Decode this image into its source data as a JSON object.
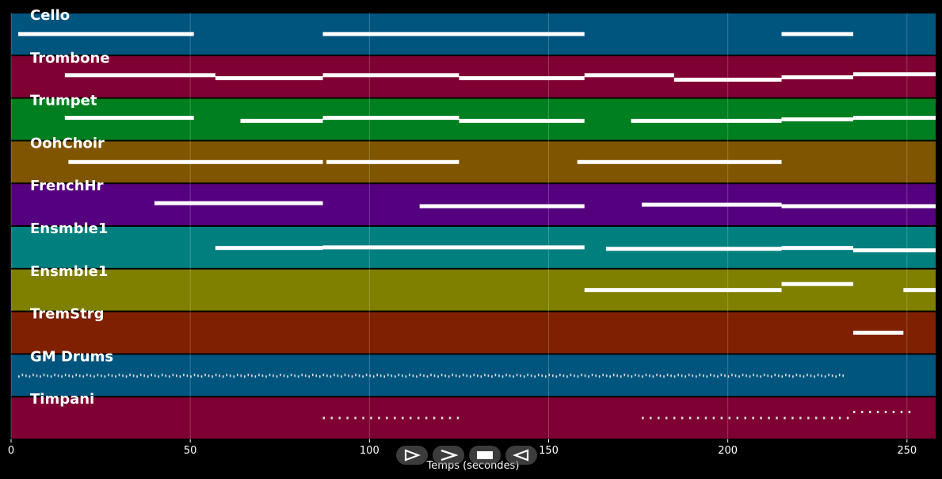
{
  "chart_data": {
    "type": "piano-roll",
    "xlabel": "Temps (secondes)",
    "xlim": [
      0,
      258
    ],
    "xticks": [
      0,
      50,
      100,
      150,
      200,
      250
    ],
    "grid": true,
    "tracks": [
      {
        "name": "Cello",
        "color": "#00557f",
        "notes": [
          [
            2,
            51,
            0.5
          ],
          [
            87,
            160,
            0.5
          ],
          [
            215,
            235,
            0.5
          ]
        ]
      },
      {
        "name": "Trombone",
        "color": "#7f0033",
        "notes": [
          [
            15,
            57,
            0.55
          ],
          [
            57,
            87,
            0.45
          ],
          [
            87,
            125,
            0.55
          ],
          [
            125,
            160,
            0.45
          ],
          [
            160,
            185,
            0.55
          ],
          [
            185,
            215,
            0.4
          ],
          [
            215,
            235,
            0.48
          ],
          [
            235,
            258,
            0.58
          ]
        ]
      },
      {
        "name": "Trumpet",
        "color": "#007f20",
        "notes": [
          [
            15,
            51,
            0.55
          ],
          [
            64,
            87,
            0.45
          ],
          [
            87,
            125,
            0.55
          ],
          [
            125,
            160,
            0.45
          ],
          [
            173,
            215,
            0.45
          ],
          [
            215,
            235,
            0.5
          ],
          [
            235,
            258,
            0.55
          ]
        ]
      },
      {
        "name": "OohChoir",
        "color": "#7f5500",
        "notes": [
          [
            16,
            87,
            0.5
          ],
          [
            88,
            125,
            0.5
          ],
          [
            158,
            215,
            0.5
          ]
        ]
      },
      {
        "name": "FrenchHr",
        "color": "#55007f",
        "notes": [
          [
            40,
            87,
            0.55
          ],
          [
            114,
            160,
            0.45
          ],
          [
            176,
            215,
            0.5
          ],
          [
            215,
            258,
            0.45
          ]
        ]
      },
      {
        "name": "Ensmble1",
        "color": "#007f7f",
        "notes": [
          [
            57,
            87,
            0.48
          ],
          [
            87,
            160,
            0.5
          ],
          [
            166,
            215,
            0.45
          ],
          [
            215,
            235,
            0.48
          ],
          [
            235,
            258,
            0.4
          ]
        ]
      },
      {
        "name": "Ensmble1",
        "color": "#7f7f00",
        "notes": [
          [
            160,
            215,
            0.5
          ],
          [
            215,
            235,
            0.7
          ],
          [
            249,
            258,
            0.5
          ]
        ]
      },
      {
        "name": "TremStrg",
        "color": "#7f2000",
        "notes": [
          [
            235,
            249,
            0.5
          ]
        ]
      },
      {
        "name": "GM Drums",
        "color": "#00557f",
        "notes": [
          [
            2,
            233,
            0.5
          ]
        ]
      },
      {
        "name": "Timpani",
        "color": "#7f0033",
        "notes": [
          [
            87,
            125,
            0.5
          ],
          [
            176,
            235,
            0.5
          ],
          [
            235,
            252,
            0.7
          ]
        ]
      }
    ]
  },
  "controls": {
    "icons": [
      "play-icon",
      "forward-icon",
      "stop-icon",
      "rewind-icon"
    ]
  }
}
